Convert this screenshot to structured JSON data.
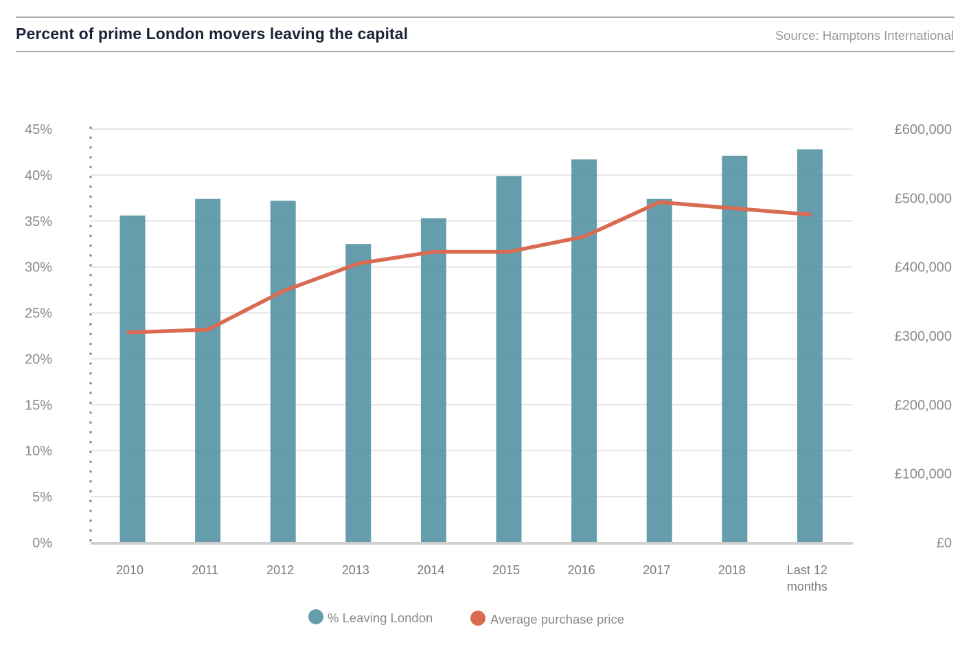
{
  "header": {
    "title": "Percent of prime London movers leaving the capital",
    "source": "Source: Hamptons International"
  },
  "colors": {
    "bar": "#4f8fa0",
    "line": "#d96b53",
    "title": "#1c2438",
    "grid": "#dcdcdc",
    "axis_text": "#8a8a8a"
  },
  "chart_data": {
    "type": "bar",
    "title": "Percent of prime London movers leaving the capital",
    "categories": [
      "2010",
      "2011",
      "2012",
      "2013",
      "2014",
      "2015",
      "2016",
      "2017",
      "2018",
      "Last 12 months"
    ],
    "category_labels": [
      [
        "2010"
      ],
      [
        "2011"
      ],
      [
        "2012"
      ],
      [
        "2013"
      ],
      [
        "2014"
      ],
      [
        "2015"
      ],
      [
        "2016"
      ],
      [
        "2017"
      ],
      [
        "2018"
      ],
      [
        "Last 12",
        "months"
      ]
    ],
    "series": [
      {
        "name": "% Leaving London",
        "type": "bar",
        "axis": "left",
        "values": [
          35.6,
          37.4,
          37.2,
          32.5,
          35.3,
          39.9,
          41.7,
          37.4,
          42.1,
          42.8
        ]
      },
      {
        "name": "Average purchase price",
        "type": "line",
        "axis": "right",
        "values": [
          305000,
          309000,
          365000,
          405000,
          422000,
          422000,
          444000,
          494000,
          485000,
          476000
        ]
      }
    ],
    "y_left": {
      "label": "",
      "ylim": [
        0,
        45
      ],
      "ticks": [
        0,
        5,
        10,
        15,
        20,
        25,
        30,
        35,
        40,
        45
      ],
      "tick_labels": [
        "0%",
        "5%",
        "10%",
        "15%",
        "20%",
        "25%",
        "30%",
        "35%",
        "40%",
        "45%"
      ]
    },
    "y_right": {
      "label": "",
      "ylim": [
        0,
        600000
      ],
      "ticks": [
        0,
        100000,
        200000,
        300000,
        400000,
        500000,
        600000
      ],
      "tick_labels": [
        "£0",
        "£100,000",
        "£200,000",
        "£300,000",
        "£400,000",
        "£500,000",
        "£600,000"
      ]
    },
    "xlabel": "",
    "grid": true,
    "legend": {
      "position": "bottom-center",
      "entries": [
        "% Leaving London",
        "Average purchase price"
      ]
    }
  }
}
